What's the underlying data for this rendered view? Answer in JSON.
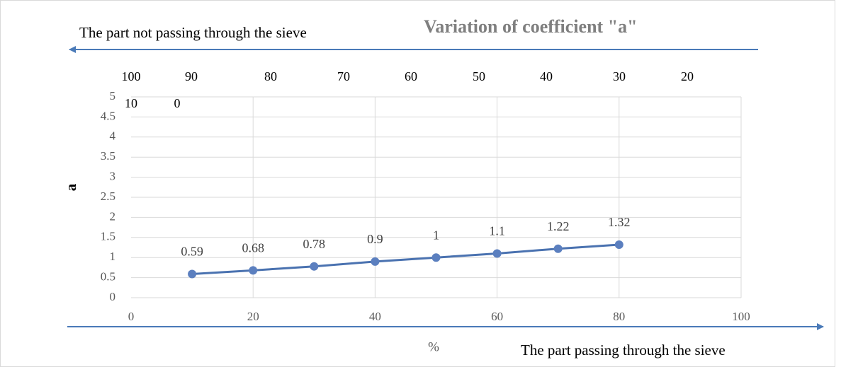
{
  "chart_data": {
    "type": "line",
    "title": "Variation of coefficient \"a\"",
    "top_caption": "The part not passing through the sieve",
    "bottom_caption": "The part passing through the sieve",
    "xlabel": "%",
    "ylabel": "a",
    "x": [
      10,
      20,
      30,
      40,
      50,
      60,
      70,
      80
    ],
    "series": [
      {
        "color": "#4a72b0",
        "marker_color": "#5b7fbf",
        "values": [
          0.59,
          0.68,
          0.78,
          0.9,
          1,
          1.1,
          1.22,
          1.32
        ]
      }
    ],
    "xlim": [
      0,
      100
    ],
    "xticks": [
      0,
      20,
      40,
      60,
      80,
      100
    ],
    "ylim": [
      0,
      5
    ],
    "yticks": [
      0,
      0.5,
      1,
      1.5,
      2,
      2.5,
      3,
      3.5,
      4,
      4.5,
      5
    ],
    "top_labels": [
      100,
      90,
      80,
      70,
      60,
      50,
      40,
      30,
      20,
      10,
      0
    ],
    "grid": true
  }
}
